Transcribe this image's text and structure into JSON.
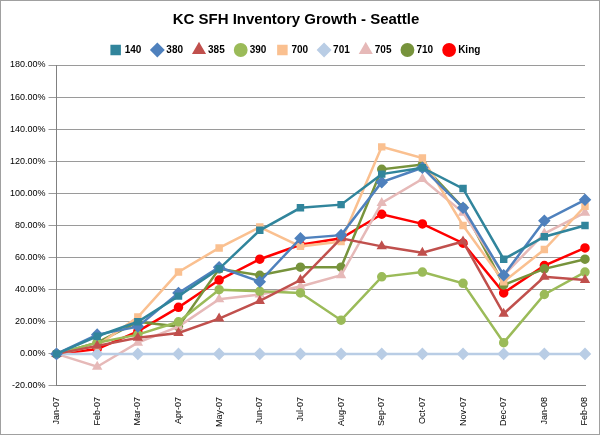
{
  "chart_data": {
    "type": "line",
    "title": "KC SFH Inventory Growth - Seattle",
    "categories": [
      "Jan-07",
      "Feb-07",
      "Mar-07",
      "Apr-07",
      "May-07",
      "Jun-07",
      "Jul-07",
      "Aug-07",
      "Sep-07",
      "Oct-07",
      "Nov-07",
      "Dec-07",
      "Jan-08",
      "Feb-08"
    ],
    "series": [
      {
        "name": "140",
        "color": "#31859C",
        "marker": "square",
        "values": [
          0,
          11,
          20,
          36,
          53,
          77,
          91,
          93,
          112,
          116,
          103,
          59,
          73,
          80
        ]
      },
      {
        "name": "380",
        "color": "#4F81BD",
        "marker": "diamond",
        "values": [
          0,
          12,
          17,
          38,
          54,
          45,
          72,
          74,
          107,
          116,
          91,
          49,
          83,
          96
        ]
      },
      {
        "name": "385",
        "color": "#C0504D",
        "marker": "triangle",
        "values": [
          0,
          5,
          10,
          13,
          22,
          33,
          46,
          72,
          67,
          63,
          70,
          25,
          48,
          46
        ]
      },
      {
        "name": "390",
        "color": "#9BBB59",
        "marker": "circle",
        "values": [
          0,
          7,
          12,
          20,
          40,
          39,
          38,
          21,
          48,
          51,
          44,
          7,
          37,
          51
        ]
      },
      {
        "name": "700",
        "color": "#FAC090",
        "marker": "square",
        "values": [
          0,
          5,
          23,
          51,
          66,
          79,
          67,
          70,
          129,
          122,
          80,
          45,
          65,
          92
        ]
      },
      {
        "name": "701",
        "color": "#B9CDE5",
        "marker": "diamond",
        "values": [
          0,
          0,
          0,
          0,
          0,
          0,
          0,
          0,
          0,
          0,
          0,
          0,
          0,
          0
        ]
      },
      {
        "name": "705",
        "color": "#E6B9B8",
        "marker": "triangle",
        "values": [
          0,
          -8,
          7,
          17,
          34,
          37,
          42,
          49,
          94,
          109,
          88,
          49,
          75,
          88
        ]
      },
      {
        "name": "710",
        "color": "#77933C",
        "marker": "circle",
        "values": [
          0,
          7,
          20,
          17,
          53,
          49,
          54,
          54,
          115,
          118,
          91,
          43,
          53,
          59
        ]
      },
      {
        "name": "King",
        "color": "#FF0000",
        "marker": "circle",
        "values": [
          0,
          3,
          14,
          29,
          46,
          59,
          68,
          72,
          87,
          81,
          69,
          38,
          55,
          66
        ]
      }
    ],
    "ylim": [
      -20,
      180
    ],
    "yticks": [
      {
        "value": -20,
        "label": "-20.00%"
      },
      {
        "value": 0,
        "label": "0.00%"
      },
      {
        "value": 20,
        "label": "20.00%"
      },
      {
        "value": 40,
        "label": "40.00%"
      },
      {
        "value": 60,
        "label": "60.00%"
      },
      {
        "value": 80,
        "label": "80.00%"
      },
      {
        "value": 100,
        "label": "100.00%"
      },
      {
        "value": 120,
        "label": "120.00%"
      },
      {
        "value": 140,
        "label": "140.00%"
      },
      {
        "value": 160,
        "label": "160.00%"
      },
      {
        "value": 180,
        "label": "180.00%"
      }
    ],
    "grid": true,
    "legend": "top"
  }
}
